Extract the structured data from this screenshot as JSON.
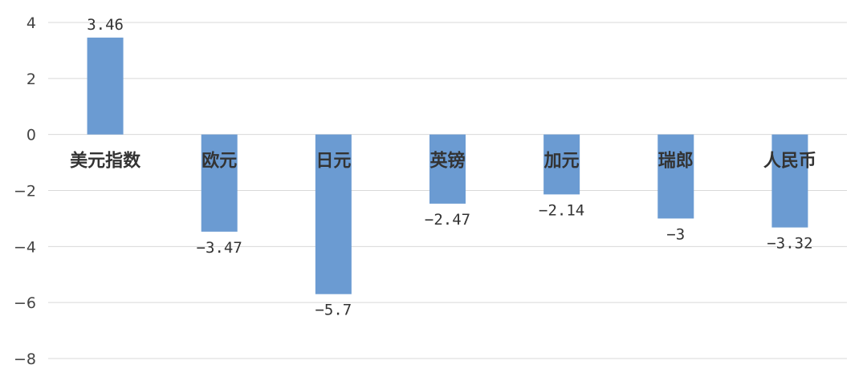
{
  "chart_data": {
    "type": "bar",
    "categories": [
      "美元指数",
      "欧元",
      "日元",
      "英镑",
      "加元",
      "瑞郎",
      "人民币"
    ],
    "values": [
      3.46,
      -3.47,
      -5.7,
      -2.47,
      -2.14,
      -3,
      -3.32
    ],
    "data_labels": [
      "3.46",
      "−3.47",
      "−5.7",
      "−2.47",
      "−2.14",
      "−3",
      "−3.32"
    ],
    "yticks": [
      "4",
      "2",
      "0",
      "−2",
      "−4",
      "−6",
      "−8"
    ],
    "ylim": [
      -8,
      4
    ],
    "grid": true,
    "bar_color": "#6b9bd2",
    "title": "",
    "xlabel": "",
    "ylabel": ""
  }
}
